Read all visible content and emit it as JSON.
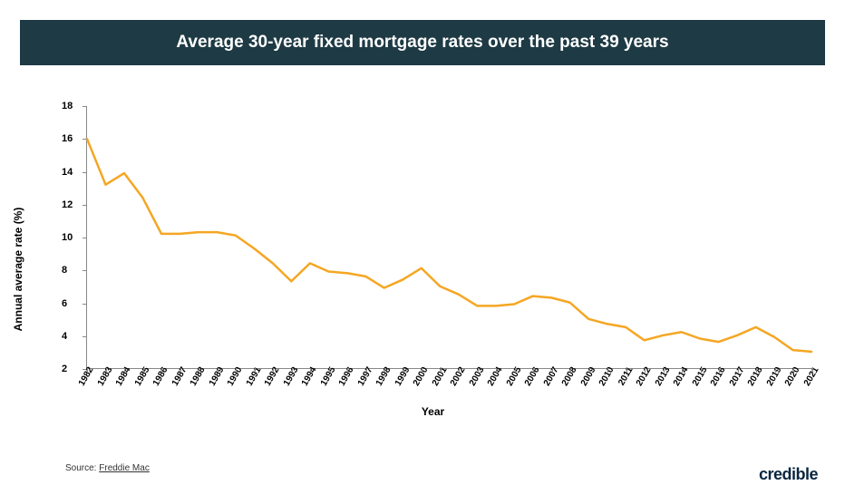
{
  "header": {
    "title": "Average 30-year fixed mortgage rates over the past 39 years",
    "background_color": "#1e3a44",
    "text_color": "#ffffff",
    "title_fontsize": 19
  },
  "chart": {
    "type": "line",
    "y_axis_label": "Annual average rate (%)",
    "x_axis_label": "Year",
    "label_fontsize": 12,
    "tick_fontsize": 11,
    "years": [
      1982,
      1983,
      1984,
      1985,
      1986,
      1987,
      1988,
      1989,
      1990,
      1991,
      1992,
      1993,
      1994,
      1995,
      1996,
      1997,
      1998,
      1999,
      2000,
      2001,
      2002,
      2003,
      2004,
      2005,
      2006,
      2007,
      2008,
      2009,
      2010,
      2011,
      2012,
      2013,
      2014,
      2015,
      2016,
      2017,
      2018,
      2019,
      2020,
      2021
    ],
    "values": [
      16.0,
      13.2,
      13.9,
      12.4,
      10.2,
      10.2,
      10.3,
      10.3,
      10.1,
      9.3,
      8.4,
      7.3,
      8.4,
      7.9,
      7.8,
      7.6,
      6.9,
      7.4,
      8.1,
      7.0,
      6.5,
      5.8,
      5.8,
      5.9,
      6.4,
      6.3,
      6.0,
      5.0,
      4.7,
      4.5,
      3.7,
      4.0,
      4.2,
      3.8,
      3.6,
      4.0,
      4.5,
      3.9,
      3.1,
      3.0
    ],
    "line_color": "#f5a623",
    "line_width": 2.5,
    "ylim": [
      2,
      18
    ],
    "ytick_step": 2,
    "axis_color": "#888888",
    "background_color": "#ffffff",
    "x_tick_rotation": -60
  },
  "source": {
    "prefix": "Source: ",
    "name": "Freddie Mac"
  },
  "brand": {
    "text": "credible",
    "color": "#0a2540",
    "fontsize": 18
  }
}
